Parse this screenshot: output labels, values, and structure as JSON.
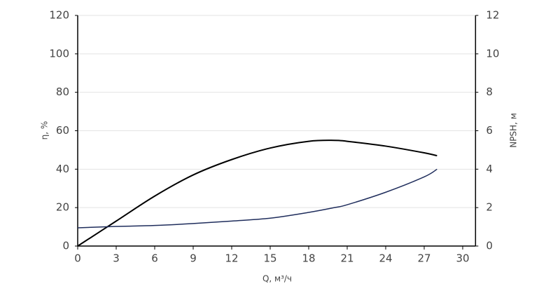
{
  "chart_data": {
    "type": "line",
    "xlabel": "Q, м³/ч",
    "ylabel": "η, %",
    "y2label": "NPSH, м",
    "x": [
      0,
      3,
      6,
      9,
      12,
      15,
      18,
      20,
      21,
      24,
      27,
      28
    ],
    "series": [
      {
        "name": "η",
        "color": "#000000",
        "values": [
          0,
          13,
          26,
          37,
          45,
          51,
          54.5,
          55,
          54.5,
          52,
          48.5,
          47
        ]
      },
      {
        "name": "NPSH",
        "color": "#1f2d5c",
        "axis": "y2",
        "values": [
          0.95,
          1.02,
          1.07,
          1.17,
          1.3,
          1.45,
          1.75,
          2.0,
          2.15,
          2.8,
          3.6,
          4.0
        ]
      }
    ],
    "xlim": [
      0,
      31
    ],
    "xticks": [
      0,
      3,
      6,
      9,
      12,
      15,
      18,
      21,
      24,
      27,
      30
    ],
    "ylim": [
      0,
      120
    ],
    "yticks": [
      0,
      20,
      40,
      60,
      80,
      100,
      120
    ],
    "y2lim": [
      0,
      12
    ],
    "y2ticks": [
      0,
      2,
      4,
      6,
      8,
      10,
      12
    ],
    "grid": true
  }
}
